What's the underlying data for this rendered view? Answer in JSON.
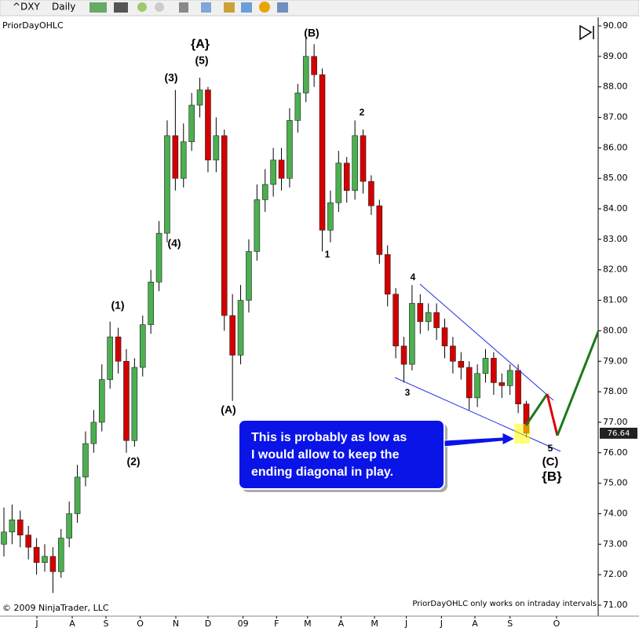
{
  "toolbar": {
    "symbol": "^DXY",
    "interval": "Daily"
  },
  "indicator_label": "PriorDayOHLC",
  "copyright": "© 2009 NinjaTrader, LLC",
  "footer_note": "PriorDayOHLC only works on intraday intervals",
  "callout": [
    "This is probably as low as",
    "I would allow to keep the",
    "ending diagonal in play."
  ],
  "chart_data": {
    "type": "candlestick",
    "up_color": "#4caf50",
    "down_color": "#d40000",
    "open": [
      73.0,
      73.4,
      73.8,
      73.3,
      72.9,
      72.4,
      72.6,
      72.1,
      73.2,
      74.0,
      75.2,
      76.3,
      77.0,
      78.4,
      79.8,
      79.0,
      76.4,
      78.8,
      80.2,
      81.6,
      83.2,
      86.4,
      85.0,
      86.2,
      87.4,
      87.9,
      85.6,
      86.4,
      80.5,
      79.2,
      81.0,
      82.6,
      84.3,
      84.8,
      85.6,
      85.0,
      86.9,
      87.8,
      89.0,
      88.4,
      83.3,
      84.2,
      85.5,
      84.6,
      86.4,
      84.9,
      84.1,
      82.5,
      81.2,
      79.5,
      78.9,
      80.9,
      80.3,
      80.6,
      80.1,
      79.5,
      79.0,
      78.8,
      77.8,
      78.6,
      79.1,
      78.3,
      78.2,
      78.7,
      77.6
    ],
    "high": [
      74.2,
      74.3,
      74.1,
      73.6,
      73.2,
      73.0,
      72.9,
      73.5,
      74.4,
      75.6,
      76.7,
      77.4,
      78.9,
      80.3,
      80.1,
      79.4,
      79.1,
      80.5,
      82.0,
      83.6,
      86.9,
      87.9,
      86.8,
      87.8,
      88.3,
      88.0,
      87.0,
      86.6,
      81.2,
      81.5,
      83.0,
      84.8,
      85.3,
      86.0,
      86.0,
      87.3,
      88.1,
      89.6,
      89.4,
      88.6,
      84.6,
      85.9,
      85.7,
      86.9,
      86.6,
      85.1,
      84.3,
      82.8,
      81.4,
      79.8,
      81.5,
      81.2,
      80.9,
      80.9,
      80.4,
      79.8,
      79.3,
      79.0,
      78.9,
      79.4,
      79.3,
      78.6,
      78.9,
      78.9,
      77.7
    ],
    "low": [
      72.6,
      73.0,
      72.9,
      72.5,
      72.0,
      72.1,
      71.4,
      71.9,
      72.9,
      73.7,
      74.9,
      76.0,
      76.7,
      78.1,
      78.6,
      76.0,
      76.2,
      78.5,
      79.9,
      81.3,
      82.9,
      84.6,
      84.7,
      85.9,
      87.0,
      85.2,
      85.2,
      80.0,
      77.7,
      78.9,
      80.6,
      82.3,
      83.9,
      84.4,
      84.6,
      84.7,
      86.5,
      87.5,
      88.0,
      82.6,
      82.9,
      83.9,
      84.2,
      84.3,
      84.5,
      83.8,
      82.2,
      80.8,
      79.1,
      78.3,
      78.7,
      79.9,
      80.0,
      79.7,
      79.1,
      78.6,
      78.4,
      77.4,
      77.5,
      78.3,
      77.9,
      77.8,
      77.9,
      77.3,
      76.5
    ],
    "close": [
      73.4,
      73.8,
      73.3,
      72.9,
      72.4,
      72.6,
      72.1,
      73.2,
      74.0,
      75.2,
      76.3,
      77.0,
      78.4,
      79.8,
      79.0,
      76.4,
      78.8,
      80.2,
      81.6,
      83.2,
      86.4,
      85.0,
      86.2,
      87.4,
      87.9,
      85.6,
      86.4,
      80.5,
      79.2,
      81.0,
      82.6,
      84.3,
      84.8,
      85.6,
      85.0,
      86.9,
      87.8,
      89.0,
      88.4,
      83.3,
      84.2,
      85.5,
      84.6,
      86.4,
      84.9,
      84.1,
      82.5,
      81.2,
      79.5,
      78.9,
      80.9,
      80.3,
      80.6,
      80.1,
      79.5,
      79.0,
      78.8,
      77.8,
      78.6,
      79.1,
      78.3,
      78.2,
      78.7,
      77.6,
      76.64
    ],
    "xlim": [
      -0.48,
      72.8
    ],
    "xticks": [
      {
        "value": 4.04,
        "label": "J"
      },
      {
        "value": 8.37,
        "label": "A"
      },
      {
        "value": 12.5,
        "label": "S"
      },
      {
        "value": 16.7,
        "label": "O"
      },
      {
        "value": 21.06,
        "label": "N"
      },
      {
        "value": 25,
        "label": "D"
      },
      {
        "value": 29.3,
        "label": "09"
      },
      {
        "value": 33.4,
        "label": "F"
      },
      {
        "value": 37.2,
        "label": "M"
      },
      {
        "value": 41.3,
        "label": "A"
      },
      {
        "value": 45.4,
        "label": "M"
      },
      {
        "value": 49.3,
        "label": "J"
      },
      {
        "value": 53.6,
        "label": "J"
      },
      {
        "value": 57.7,
        "label": "A"
      },
      {
        "value": 62,
        "label": "S"
      },
      {
        "value": 67.7,
        "label": "O"
      }
    ],
    "ylim": [
      71.0,
      90.0
    ],
    "yticks": [
      {
        "value": 71,
        "label": "71.00"
      },
      {
        "value": 72,
        "label": "72.00"
      },
      {
        "value": 73,
        "label": "73.00"
      },
      {
        "value": 74,
        "label": "74.00"
      },
      {
        "value": 75,
        "label": "75.00"
      },
      {
        "value": 76,
        "label": "76.00"
      },
      {
        "value": 77,
        "label": "77.00"
      },
      {
        "value": 78,
        "label": "78.00"
      },
      {
        "value": 79,
        "label": "79.00"
      },
      {
        "value": 80,
        "label": "80.00"
      },
      {
        "value": 81,
        "label": "81.00"
      },
      {
        "value": 82,
        "label": "82.00"
      },
      {
        "value": 83,
        "label": "83.00"
      },
      {
        "value": 84,
        "label": "84.00"
      },
      {
        "value": 85,
        "label": "85.00"
      },
      {
        "value": 86,
        "label": "86.00"
      },
      {
        "value": 87,
        "label": "87.00"
      },
      {
        "value": 88,
        "label": "88.00"
      },
      {
        "value": 89,
        "label": "89.00"
      },
      {
        "value": 90,
        "label": "90.00"
      }
    ],
    "annotations": [
      "{A}",
      "(5)",
      "(3)",
      "(B)",
      "2",
      "(1)",
      "(4)",
      "(2)",
      "(A)",
      "1",
      "4",
      "3",
      "5",
      "(C)",
      "{B}"
    ]
  }
}
